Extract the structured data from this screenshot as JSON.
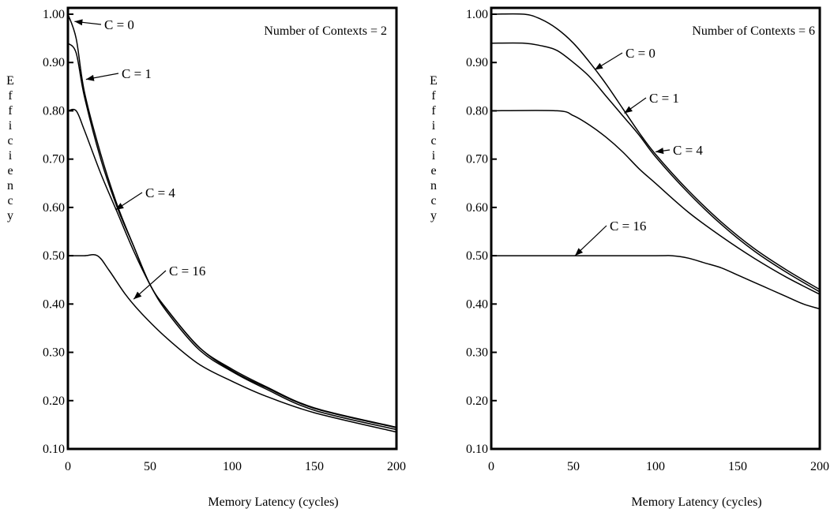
{
  "chart_data": [
    {
      "type": "line",
      "title": "Number of Contexts = 2",
      "xlabel": "Memory Latency (cycles)",
      "ylabel": "Efficiency",
      "xlim": [
        0,
        200
      ],
      "ylim": [
        0.1,
        1.0
      ],
      "xticks": [
        "0",
        "50",
        "100",
        "150",
        "200"
      ],
      "yticks": [
        "0.10",
        "0.20",
        "0.30",
        "0.40",
        "0.50",
        "0.60",
        "0.70",
        "0.80",
        "0.90",
        "1.00"
      ],
      "grid": false,
      "series": [
        {
          "name": "C = 0",
          "x": [
            0,
            5,
            10,
            20,
            30,
            40,
            50,
            60,
            80,
            100,
            120,
            150,
            200
          ],
          "y": [
            1.0,
            0.95,
            0.84,
            0.71,
            0.605,
            0.52,
            0.44,
            0.39,
            0.31,
            0.265,
            0.23,
            0.185,
            0.145
          ]
        },
        {
          "name": "C = 1",
          "x": [
            0,
            5,
            10,
            20,
            30,
            40,
            50,
            60,
            80,
            100,
            120,
            150,
            200
          ],
          "y": [
            0.94,
            0.92,
            0.83,
            0.7,
            0.6,
            0.52,
            0.44,
            0.39,
            0.31,
            0.262,
            0.228,
            0.184,
            0.144
          ]
        },
        {
          "name": "C = 4",
          "x": [
            0,
            5,
            10,
            20,
            30,
            40,
            50,
            60,
            80,
            100,
            120,
            150,
            200
          ],
          "y": [
            0.8,
            0.8,
            0.76,
            0.67,
            0.59,
            0.51,
            0.44,
            0.385,
            0.305,
            0.26,
            0.225,
            0.18,
            0.14
          ]
        },
        {
          "name": "C = 16",
          "x": [
            0,
            10,
            18,
            25,
            35,
            45,
            60,
            80,
            100,
            120,
            150,
            200
          ],
          "y": [
            0.5,
            0.5,
            0.5,
            0.47,
            0.42,
            0.38,
            0.33,
            0.275,
            0.24,
            0.21,
            0.175,
            0.135
          ]
        }
      ],
      "annotations": [
        "C = 0",
        "C = 1",
        "C = 4",
        "C = 16"
      ]
    },
    {
      "type": "line",
      "title": "Number of Contexts = 6",
      "xlabel": "Memory Latency (cycles)",
      "ylabel": "Efficiency",
      "xlim": [
        0,
        200
      ],
      "ylim": [
        0.1,
        1.0
      ],
      "xticks": [
        "0",
        "50",
        "100",
        "150",
        "200"
      ],
      "yticks": [
        "0.10",
        "0.20",
        "0.30",
        "0.40",
        "0.50",
        "0.60",
        "0.70",
        "0.80",
        "0.90",
        "1.00"
      ],
      "grid": false,
      "series": [
        {
          "name": "C = 0",
          "x": [
            0,
            20,
            30,
            40,
            50,
            60,
            70,
            80,
            90,
            100,
            120,
            140,
            160,
            180,
            200
          ],
          "y": [
            1.0,
            1.0,
            0.99,
            0.97,
            0.94,
            0.9,
            0.855,
            0.805,
            0.755,
            0.71,
            0.635,
            0.57,
            0.515,
            0.47,
            0.43
          ]
        },
        {
          "name": "C = 1",
          "x": [
            0,
            20,
            30,
            40,
            50,
            60,
            70,
            80,
            90,
            100,
            120,
            140,
            160,
            180,
            200
          ],
          "y": [
            0.94,
            0.94,
            0.935,
            0.925,
            0.9,
            0.87,
            0.83,
            0.79,
            0.75,
            0.705,
            0.63,
            0.565,
            0.51,
            0.465,
            0.425
          ]
        },
        {
          "name": "C = 4",
          "x": [
            0,
            40,
            50,
            60,
            70,
            80,
            90,
            100,
            120,
            140,
            160,
            180,
            200
          ],
          "y": [
            0.8,
            0.8,
            0.79,
            0.77,
            0.745,
            0.715,
            0.68,
            0.65,
            0.59,
            0.54,
            0.495,
            0.455,
            0.42
          ]
        },
        {
          "name": "C = 16",
          "x": [
            0,
            50,
            100,
            110,
            120,
            130,
            140,
            150,
            160,
            170,
            180,
            190,
            200
          ],
          "y": [
            0.5,
            0.5,
            0.5,
            0.5,
            0.495,
            0.485,
            0.475,
            0.46,
            0.445,
            0.43,
            0.415,
            0.4,
            0.39
          ]
        }
      ],
      "annotations": [
        "C = 0",
        "C = 1",
        "C = 4",
        "C = 16"
      ]
    }
  ]
}
